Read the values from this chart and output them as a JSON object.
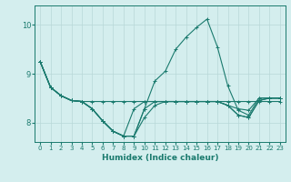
{
  "xlabel": "Humidex (Indice chaleur)",
  "ylabel": "",
  "background_color": "#d4eeee",
  "grid_color": "#b8d8d8",
  "line_color": "#1a7a6e",
  "xlim": [
    -0.5,
    23.5
  ],
  "ylim": [
    7.6,
    10.4
  ],
  "xticks": [
    0,
    1,
    2,
    3,
    4,
    5,
    6,
    7,
    8,
    9,
    10,
    11,
    12,
    13,
    14,
    15,
    16,
    17,
    18,
    19,
    20,
    21,
    22,
    23
  ],
  "yticks": [
    8,
    9,
    10
  ],
  "series": [
    [
      9.25,
      8.72,
      8.55,
      8.45,
      8.43,
      8.28,
      8.03,
      7.82,
      7.72,
      7.72,
      8.28,
      8.85,
      9.05,
      9.5,
      9.75,
      9.95,
      10.12,
      9.55,
      8.75,
      8.25,
      8.15,
      8.5,
      8.5,
      8.5
    ],
    [
      9.25,
      8.72,
      8.55,
      8.45,
      8.43,
      8.43,
      8.43,
      8.43,
      8.43,
      8.43,
      8.43,
      8.43,
      8.43,
      8.43,
      8.43,
      8.43,
      8.43,
      8.43,
      8.43,
      8.43,
      8.43,
      8.43,
      8.43,
      8.43
    ],
    [
      9.25,
      8.72,
      8.55,
      8.45,
      8.43,
      8.28,
      8.03,
      7.82,
      7.72,
      8.28,
      8.43,
      8.43,
      8.43,
      8.43,
      8.43,
      8.43,
      8.43,
      8.43,
      8.35,
      8.28,
      8.25,
      8.5,
      8.5,
      8.5
    ],
    [
      9.25,
      8.72,
      8.55,
      8.45,
      8.43,
      8.28,
      8.03,
      7.82,
      7.72,
      7.72,
      8.1,
      8.35,
      8.43,
      8.43,
      8.43,
      8.43,
      8.43,
      8.43,
      8.35,
      8.15,
      8.1,
      8.45,
      8.5,
      8.5
    ],
    [
      9.25,
      8.72,
      8.55,
      8.45,
      8.43,
      8.28,
      8.03,
      7.82,
      7.72,
      7.72,
      8.28,
      8.43,
      8.43,
      8.43,
      8.43,
      8.43,
      8.43,
      8.43,
      8.35,
      8.15,
      8.1,
      8.45,
      8.5,
      8.5
    ]
  ]
}
